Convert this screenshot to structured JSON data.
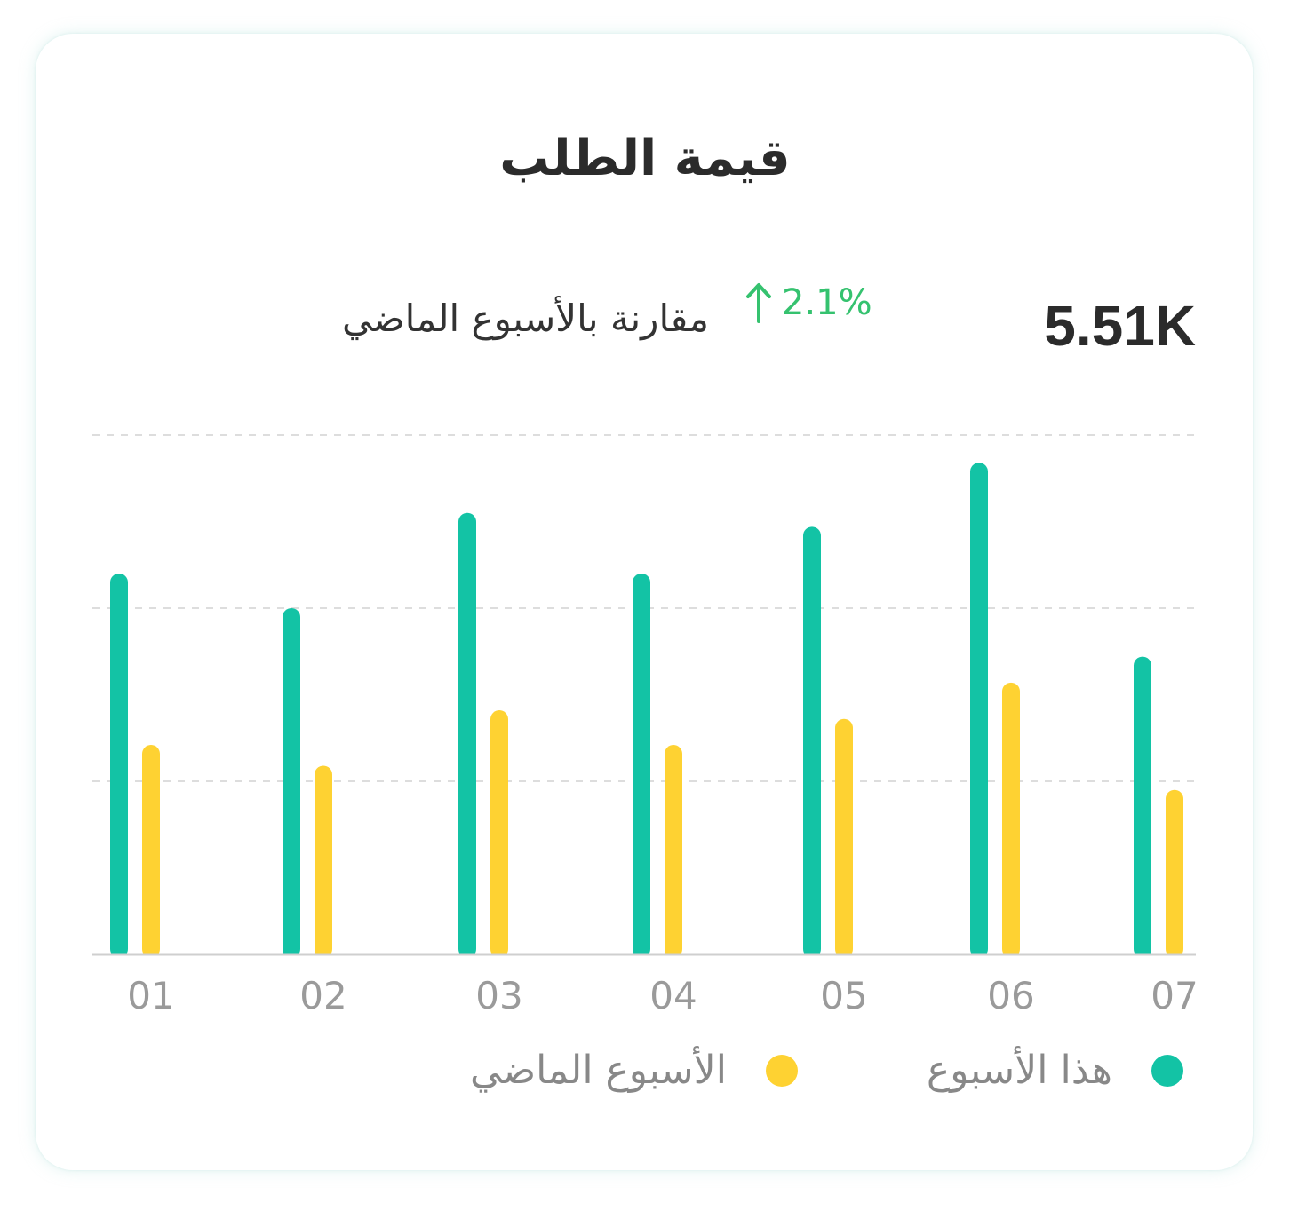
{
  "card": {
    "title": "قيمة الطلب",
    "value": "5.51K",
    "change": "2.1%",
    "change_direction": "up",
    "compare_label": "مقارنة بالأسبوع الماضي"
  },
  "colors": {
    "this_week": "#13c3a5",
    "last_week": "#fed232",
    "change": "#35c26f",
    "grid": "#dddddd",
    "axis": "#cfcfcf",
    "tick": "#9a9a9a"
  },
  "legend": {
    "this_week": "هذا الأسبوع",
    "last_week": "الأسبوع الماضي"
  },
  "chart_data": {
    "type": "bar",
    "categories": [
      "01",
      "02",
      "03",
      "04",
      "05",
      "06",
      "07"
    ],
    "series": [
      {
        "name": "هذا الأسبوع",
        "values": [
          220,
          200,
          255,
          220,
          247,
          284,
          172
        ]
      },
      {
        "name": "الأسبوع الماضي",
        "values": [
          121,
          109,
          141,
          121,
          136,
          157,
          95
        ]
      }
    ],
    "ylim": [
      0,
      300
    ],
    "grid": true,
    "legend_position": "bottom"
  }
}
